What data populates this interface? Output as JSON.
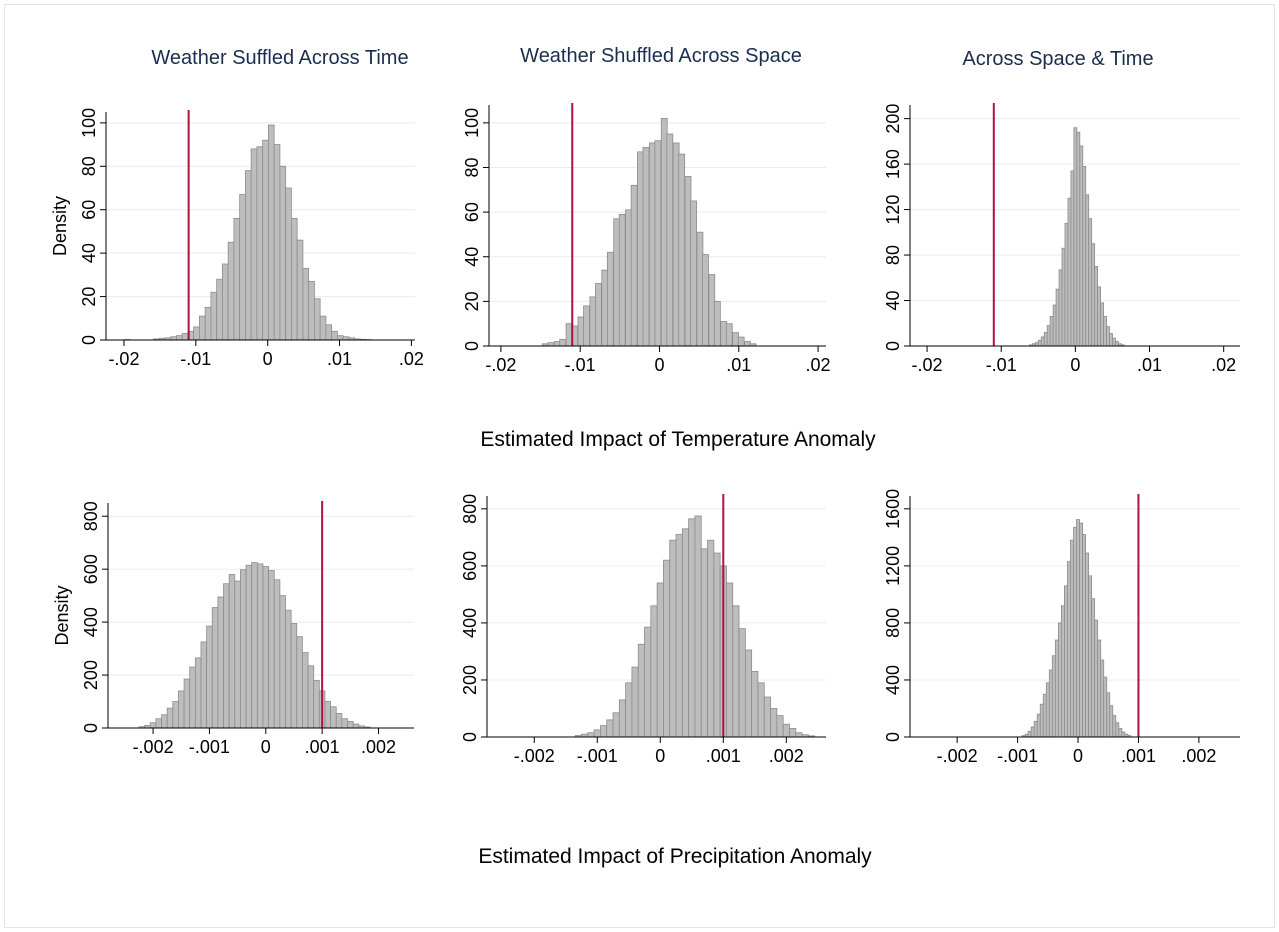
{
  "colors": {
    "bar_fill": "#bdbdbd",
    "bar_stroke": "#8c8c8c",
    "grid": "#e6ebef",
    "axis": "#000000",
    "vline": "#b0123b",
    "column_title": "#1a2d4f"
  },
  "row_titles": {
    "temperature": "Estimated Impact of Temperature Anomaly",
    "precipitation": "Estimated Impact of Precipitation Anomaly"
  },
  "column_titles": [
    "Weather Suffled Across Time",
    "Weather Shuffled Across Space",
    "Across Space & Time"
  ],
  "chart_data": [
    {
      "id": "temp-time",
      "type": "bar",
      "title": "Weather Suffled Across Time",
      "xlabel": "",
      "ylabel": "Density",
      "xlim": [
        -0.0225,
        0.0205
      ],
      "ylim": [
        0,
        105
      ],
      "xticks": [
        -0.02,
        -0.01,
        0,
        0.01,
        0.02
      ],
      "xtick_labels": [
        "-.02",
        "-.01",
        "0",
        ".01",
        ".02"
      ],
      "yticks": [
        0,
        20,
        40,
        60,
        80,
        100
      ],
      "ytick_labels": [
        "0",
        "20",
        "40",
        "60",
        "80",
        "100"
      ],
      "grid": true,
      "bin_width": 0.0008,
      "vline": -0.011,
      "bins": [
        [
          -0.0195,
          0.2
        ],
        [
          -0.0155,
          0.5
        ],
        [
          -0.0147,
          0.8
        ],
        [
          -0.0139,
          1
        ],
        [
          -0.0131,
          1.5
        ],
        [
          -0.0123,
          2
        ],
        [
          -0.0115,
          3
        ],
        [
          -0.0107,
          4
        ],
        [
          -0.0099,
          6
        ],
        [
          -0.0091,
          11
        ],
        [
          -0.0083,
          15
        ],
        [
          -0.0075,
          22
        ],
        [
          -0.0067,
          28
        ],
        [
          -0.0059,
          35
        ],
        [
          -0.0051,
          45
        ],
        [
          -0.0043,
          56
        ],
        [
          -0.0035,
          67
        ],
        [
          -0.0027,
          78
        ],
        [
          -0.0019,
          88
        ],
        [
          -0.0011,
          89
        ],
        [
          -0.0003,
          92
        ],
        [
          0.0005,
          99
        ],
        [
          0.0013,
          90
        ],
        [
          0.0021,
          80
        ],
        [
          0.0029,
          70
        ],
        [
          0.0037,
          56
        ],
        [
          0.0045,
          46
        ],
        [
          0.0053,
          33
        ],
        [
          0.0061,
          27
        ],
        [
          0.0069,
          19
        ],
        [
          0.0077,
          11
        ],
        [
          0.0085,
          7
        ],
        [
          0.0093,
          4
        ],
        [
          0.0101,
          2
        ],
        [
          0.0109,
          1.5
        ],
        [
          0.0117,
          1
        ],
        [
          0.0125,
          0.5
        ],
        [
          0.0133,
          0.3
        ],
        [
          0.0141,
          0.2
        ]
      ]
    },
    {
      "id": "temp-space",
      "type": "bar",
      "title": "Weather Shuffled Across Space",
      "xlabel": "",
      "ylabel": "",
      "xlim": [
        -0.0215,
        0.021
      ],
      "ylim": [
        0,
        108
      ],
      "xticks": [
        -0.02,
        -0.01,
        0,
        0.01,
        0.02
      ],
      "xtick_labels": [
        "-.02",
        "-.01",
        "0",
        ".01",
        ".02"
      ],
      "yticks": [
        0,
        20,
        40,
        60,
        80,
        100
      ],
      "ytick_labels": [
        "0",
        "20",
        "40",
        "60",
        "80",
        "100"
      ],
      "grid": true,
      "bin_width": 0.00075,
      "vline": -0.011,
      "bins": [
        [
          -0.0144,
          1
        ],
        [
          -0.0137,
          1.5
        ],
        [
          -0.0129,
          2
        ],
        [
          -0.0122,
          3
        ],
        [
          -0.0114,
          10
        ],
        [
          -0.0107,
          9
        ],
        [
          -0.0099,
          13
        ],
        [
          -0.0092,
          18
        ],
        [
          -0.0084,
          22
        ],
        [
          -0.0077,
          28
        ],
        [
          -0.0069,
          34
        ],
        [
          -0.0062,
          42
        ],
        [
          -0.0054,
          57
        ],
        [
          -0.0047,
          59
        ],
        [
          -0.0039,
          61
        ],
        [
          -0.0032,
          72
        ],
        [
          -0.0024,
          87
        ],
        [
          -0.0017,
          89
        ],
        [
          -0.0009,
          91
        ],
        [
          -0.0002,
          92
        ],
        [
          0.0006,
          102
        ],
        [
          0.0013,
          95
        ],
        [
          0.0021,
          91
        ],
        [
          0.0028,
          86
        ],
        [
          0.0036,
          76
        ],
        [
          0.0043,
          65
        ],
        [
          0.0051,
          51
        ],
        [
          0.0058,
          41
        ],
        [
          0.0066,
          32
        ],
        [
          0.0073,
          20
        ],
        [
          0.0081,
          11
        ],
        [
          0.0088,
          10
        ],
        [
          0.0096,
          6
        ],
        [
          0.0103,
          4
        ],
        [
          0.0111,
          2
        ],
        [
          0.0118,
          1
        ]
      ]
    },
    {
      "id": "temp-spacetime",
      "type": "bar",
      "title": "Across Space & Time",
      "xlabel": "",
      "ylabel": "",
      "xlim": [
        -0.0223,
        0.0222
      ],
      "ylim": [
        0,
        212
      ],
      "xticks": [
        -0.02,
        -0.01,
        0,
        0.01,
        0.02
      ],
      "xtick_labels": [
        "-.02",
        "-.01",
        "0",
        ".01",
        ".02"
      ],
      "yticks": [
        0,
        40,
        80,
        120,
        160,
        200
      ],
      "ytick_labels": [
        "0",
        "40",
        "80",
        "120",
        "160",
        "200"
      ],
      "grid": true,
      "bin_width": 0.0004,
      "vline": -0.011,
      "bins": [
        [
          -0.006,
          1
        ],
        [
          -0.0056,
          2
        ],
        [
          -0.0052,
          3
        ],
        [
          -0.0048,
          5
        ],
        [
          -0.0044,
          8
        ],
        [
          -0.004,
          12
        ],
        [
          -0.0036,
          18
        ],
        [
          -0.0032,
          26
        ],
        [
          -0.0028,
          36
        ],
        [
          -0.0024,
          50
        ],
        [
          -0.002,
          67
        ],
        [
          -0.0016,
          86
        ],
        [
          -0.0012,
          108
        ],
        [
          -0.0008,
          130
        ],
        [
          -0.0004,
          154
        ],
        [
          0,
          192
        ],
        [
          0.0004,
          188
        ],
        [
          0.0008,
          176
        ],
        [
          0.0012,
          158
        ],
        [
          0.0016,
          133
        ],
        [
          0.002,
          112
        ],
        [
          0.0024,
          90
        ],
        [
          0.0028,
          70
        ],
        [
          0.0032,
          52
        ],
        [
          0.0036,
          38
        ],
        [
          0.004,
          26
        ],
        [
          0.0044,
          17
        ],
        [
          0.0048,
          11
        ],
        [
          0.0052,
          7
        ],
        [
          0.0056,
          4
        ],
        [
          0.006,
          2
        ],
        [
          0.0064,
          1
        ]
      ]
    },
    {
      "id": "precip-time",
      "type": "bar",
      "title": "",
      "xlabel": "",
      "ylabel": "Density",
      "xlim": [
        -0.0028,
        0.00263
      ],
      "ylim": [
        0,
        850
      ],
      "xticks": [
        -0.002,
        -0.001,
        0,
        0.001,
        0.002
      ],
      "xtick_labels": [
        "-.002",
        "-.001",
        "0",
        ".001",
        ".002"
      ],
      "yticks": [
        0,
        200,
        400,
        600,
        800
      ],
      "ytick_labels": [
        "0",
        "200",
        "400",
        "600",
        "800"
      ],
      "grid": true,
      "bin_width": 0.0001,
      "vline": 0.001,
      "bins": [
        [
          -0.0022,
          5
        ],
        [
          -0.0021,
          10
        ],
        [
          -0.002,
          20
        ],
        [
          -0.0019,
          35
        ],
        [
          -0.0018,
          50
        ],
        [
          -0.0017,
          75
        ],
        [
          -0.0016,
          100
        ],
        [
          -0.0015,
          140
        ],
        [
          -0.0014,
          185
        ],
        [
          -0.0013,
          230
        ],
        [
          -0.0012,
          265
        ],
        [
          -0.0011,
          325
        ],
        [
          -0.001,
          385
        ],
        [
          -0.0009,
          455
        ],
        [
          -0.0008,
          495
        ],
        [
          -0.0007,
          545
        ],
        [
          -0.0006,
          580
        ],
        [
          -0.0005,
          555
        ],
        [
          -0.0004,
          598
        ],
        [
          -0.0003,
          615
        ],
        [
          -0.0002,
          625
        ],
        [
          -0.0001,
          620
        ],
        [
          0,
          610
        ],
        [
          0.0001,
          595
        ],
        [
          0.0002,
          560
        ],
        [
          0.0003,
          500
        ],
        [
          0.0004,
          445
        ],
        [
          0.0005,
          395
        ],
        [
          0.0006,
          345
        ],
        [
          0.0007,
          285
        ],
        [
          0.0008,
          235
        ],
        [
          0.0009,
          180
        ],
        [
          0.001,
          140
        ],
        [
          0.0011,
          100
        ],
        [
          0.0012,
          80
        ],
        [
          0.0013,
          55
        ],
        [
          0.0014,
          35
        ],
        [
          0.0015,
          25
        ],
        [
          0.0016,
          15
        ],
        [
          0.0017,
          8
        ],
        [
          0.0018,
          4
        ]
      ]
    },
    {
      "id": "precip-space",
      "type": "bar",
      "title": "",
      "xlabel": "",
      "ylabel": "",
      "xlim": [
        -0.00275,
        0.00263
      ],
      "ylim": [
        0,
        845
      ],
      "xticks": [
        -0.002,
        -0.001,
        0,
        0.001,
        0.002
      ],
      "xtick_labels": [
        "-.002",
        "-.001",
        "0",
        ".001",
        ".002"
      ],
      "yticks": [
        0,
        200,
        400,
        600,
        800
      ],
      "ytick_labels": [
        "0",
        "200",
        "400",
        "600",
        "800"
      ],
      "grid": true,
      "bin_width": 0.0001,
      "vline": 0.001,
      "bins": [
        [
          -0.0013,
          5
        ],
        [
          -0.0012,
          10
        ],
        [
          -0.0011,
          15
        ],
        [
          -0.001,
          25
        ],
        [
          -0.0009,
          40
        ],
        [
          -0.0008,
          60
        ],
        [
          -0.0007,
          85
        ],
        [
          -0.0006,
          130
        ],
        [
          -0.0005,
          190
        ],
        [
          -0.0004,
          245
        ],
        [
          -0.0003,
          325
        ],
        [
          -0.0002,
          385
        ],
        [
          -0.0001,
          460
        ],
        [
          0,
          540
        ],
        [
          0.0001,
          620
        ],
        [
          0.0002,
          690
        ],
        [
          0.0003,
          710
        ],
        [
          0.0004,
          730
        ],
        [
          0.0005,
          765
        ],
        [
          0.0006,
          775
        ],
        [
          0.0007,
          660
        ],
        [
          0.0008,
          690
        ],
        [
          0.0009,
          645
        ],
        [
          0.001,
          600
        ],
        [
          0.0011,
          540
        ],
        [
          0.0012,
          460
        ],
        [
          0.0013,
          380
        ],
        [
          0.0014,
          305
        ],
        [
          0.0015,
          230
        ],
        [
          0.0016,
          190
        ],
        [
          0.0017,
          140
        ],
        [
          0.0018,
          100
        ],
        [
          0.0019,
          75
        ],
        [
          0.002,
          45
        ],
        [
          0.0021,
          30
        ],
        [
          0.0022,
          15
        ],
        [
          0.0023,
          8
        ],
        [
          0.0024,
          4
        ]
      ]
    },
    {
      "id": "precip-spacetime",
      "type": "bar",
      "title": "",
      "xlabel": "",
      "ylabel": "",
      "xlim": [
        -0.00278,
        0.00268
      ],
      "ylim": [
        0,
        1690
      ],
      "xticks": [
        -0.002,
        -0.001,
        0,
        0.001,
        0.002
      ],
      "xtick_labels": [
        "-.002",
        "-.001",
        "0",
        ".001",
        ".002"
      ],
      "yticks": [
        0,
        400,
        800,
        1200,
        1600
      ],
      "ytick_labels": [
        "0",
        "400",
        "800",
        "1200",
        "1600"
      ],
      "grid": true,
      "bin_width": 5e-05,
      "vline": 0.001,
      "bins": [
        [
          -0.0009,
          10
        ],
        [
          -0.00085,
          20
        ],
        [
          -0.0008,
          40
        ],
        [
          -0.00075,
          70
        ],
        [
          -0.0007,
          110
        ],
        [
          -0.00065,
          160
        ],
        [
          -0.0006,
          230
        ],
        [
          -0.00055,
          300
        ],
        [
          -0.0005,
          380
        ],
        [
          -0.00045,
          470
        ],
        [
          -0.0004,
          570
        ],
        [
          -0.00035,
          680
        ],
        [
          -0.0003,
          800
        ],
        [
          -0.00025,
          920
        ],
        [
          -0.0002,
          1060
        ],
        [
          -0.00015,
          1230
        ],
        [
          -0.0001,
          1380
        ],
        [
          -5e-05,
          1470
        ],
        [
          0,
          1525
        ],
        [
          5e-05,
          1500
        ],
        [
          0.0001,
          1420
        ],
        [
          0.00015,
          1290
        ],
        [
          0.0002,
          1130
        ],
        [
          0.00025,
          970
        ],
        [
          0.0003,
          820
        ],
        [
          0.00035,
          680
        ],
        [
          0.0004,
          540
        ],
        [
          0.00045,
          420
        ],
        [
          0.0005,
          310
        ],
        [
          0.00055,
          220
        ],
        [
          0.0006,
          150
        ],
        [
          0.00065,
          100
        ],
        [
          0.0007,
          60
        ],
        [
          0.00075,
          35
        ],
        [
          0.0008,
          20
        ],
        [
          0.00085,
          10
        ]
      ]
    }
  ]
}
